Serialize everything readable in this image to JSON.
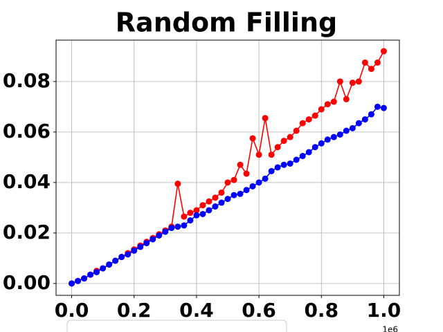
{
  "chart_data": {
    "type": "line",
    "title": "Random Filling",
    "x_offset_label": "1e6",
    "x": [
      0,
      20000,
      40000,
      60000,
      80000,
      100000,
      120000,
      140000,
      160000,
      180000,
      200000,
      220000,
      240000,
      260000,
      280000,
      300000,
      320000,
      340000,
      360000,
      380000,
      400000,
      420000,
      440000,
      460000,
      480000,
      500000,
      520000,
      540000,
      560000,
      580000,
      600000,
      620000,
      640000,
      660000,
      680000,
      700000,
      720000,
      740000,
      760000,
      780000,
      800000,
      820000,
      840000,
      860000,
      880000,
      900000,
      920000,
      940000,
      960000,
      980000,
      1000000
    ],
    "series": [
      {
        "color": "#ff0000",
        "values": [
          0.0,
          0.001,
          0.002,
          0.0035,
          0.005,
          0.006,
          0.0075,
          0.009,
          0.0105,
          0.012,
          0.0135,
          0.015,
          0.0165,
          0.018,
          0.0195,
          0.021,
          0.0225,
          0.0395,
          0.0265,
          0.028,
          0.029,
          0.031,
          0.0325,
          0.034,
          0.036,
          0.04,
          0.041,
          0.047,
          0.0435,
          0.0575,
          0.051,
          0.0655,
          0.051,
          0.054,
          0.0565,
          0.058,
          0.0605,
          0.0635,
          0.065,
          0.0665,
          0.069,
          0.071,
          0.072,
          0.08,
          0.073,
          0.0795,
          0.08,
          0.0875,
          0.085,
          0.0875,
          0.092
        ]
      },
      {
        "color": "#0000ff",
        "values": [
          0.0,
          0.001,
          0.002,
          0.0035,
          0.0045,
          0.006,
          0.0075,
          0.009,
          0.0105,
          0.0115,
          0.013,
          0.0145,
          0.016,
          0.0175,
          0.019,
          0.0205,
          0.022,
          0.0225,
          0.023,
          0.025,
          0.027,
          0.0275,
          0.029,
          0.0305,
          0.032,
          0.0335,
          0.035,
          0.0355,
          0.037,
          0.0385,
          0.04,
          0.0415,
          0.0445,
          0.046,
          0.047,
          0.0475,
          0.049,
          0.0505,
          0.052,
          0.054,
          0.0555,
          0.057,
          0.058,
          0.059,
          0.0605,
          0.0615,
          0.0635,
          0.065,
          0.067,
          0.07,
          0.0695
        ]
      }
    ],
    "xlim": [
      -50000,
      1050000
    ],
    "ylim": [
      -0.0047,
      0.0964
    ],
    "xticks": [
      {
        "value": 0,
        "label": "0.0"
      },
      {
        "value": 200000,
        "label": "0.2"
      },
      {
        "value": 400000,
        "label": "0.4"
      },
      {
        "value": 600000,
        "label": "0.6"
      },
      {
        "value": 800000,
        "label": "0.8"
      },
      {
        "value": 1000000,
        "label": "1.0"
      }
    ],
    "yticks": [
      {
        "value": 0,
        "label": "0.00"
      },
      {
        "value": 0.02,
        "label": "0.02"
      },
      {
        "value": 0.04,
        "label": "0.04"
      },
      {
        "value": 0.06,
        "label": "0.06"
      },
      {
        "value": 0.08,
        "label": "0.08"
      }
    ],
    "grid": true
  }
}
